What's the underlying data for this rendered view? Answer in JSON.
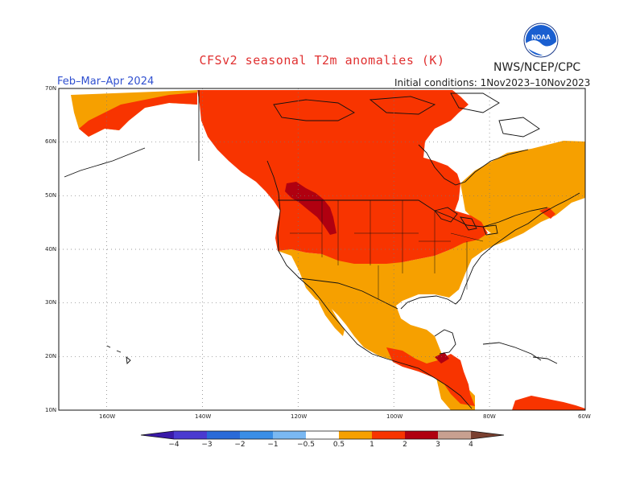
{
  "header": {
    "title": "CFSv2 seasonal T2m anomalies (K)",
    "agency": "NWS/NCEP/CPC",
    "season": "Feb–Mar–Apr 2024",
    "initial_conditions": "Initial conditions: 1Nov2023–10Nov2023",
    "logo_text": "NOAA"
  },
  "axes": {
    "lat_labels": [
      "70N",
      "60N",
      "50N",
      "40N",
      "30N",
      "20N",
      "10N"
    ],
    "lon_labels": [
      "160W",
      "140W",
      "120W",
      "100W",
      "80W",
      "60W"
    ],
    "lat_values": [
      70,
      60,
      50,
      40,
      30,
      20,
      10
    ],
    "lon_values": [
      -160,
      -140,
      -120,
      -100,
      -80,
      -60
    ],
    "lon_range": [
      -170,
      -60
    ],
    "lat_range": [
      10,
      70
    ],
    "grid": "dotted"
  },
  "colorbar": {
    "ticks": [
      "−4",
      "−3",
      "−2",
      "−1",
      "−0.5",
      "0.5",
      "1",
      "2",
      "3",
      "4"
    ],
    "colors": [
      "#3a1aa8",
      "#4a3ad0",
      "#2a6ad8",
      "#3a8ee6",
      "#7ab8f2",
      "#ffffff",
      "#f6a000",
      "#f83400",
      "#b00010",
      "#c8a090",
      "#7a4030"
    ]
  },
  "colors": {
    "cat_05_1": "#f6a000",
    "cat_1_2": "#f83400",
    "cat_2_3": "#b00010",
    "ocean": "#ffffff"
  }
}
